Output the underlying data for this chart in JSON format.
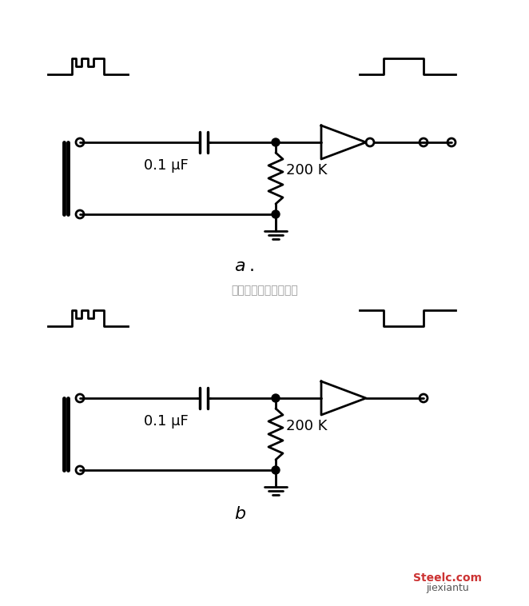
{
  "bg_color": "#ffffff",
  "line_color": "#000000",
  "line_width": 2.0,
  "fig_width": 6.62,
  "fig_height": 7.58,
  "label_a": "a",
  "label_b": "b",
  "cap_label": "0.1 μF",
  "res_label": "200 K",
  "watermark": "杭州将睽科技有限公司",
  "watermark2": "Steelc.com",
  "watermark3": "jiexiantu"
}
